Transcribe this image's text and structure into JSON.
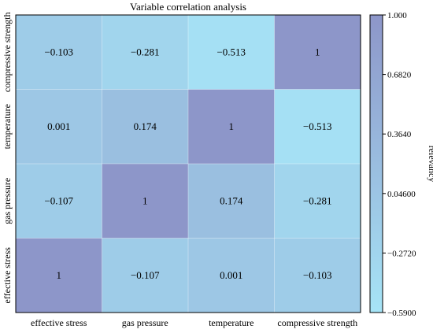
{
  "chart_data": {
    "type": "heatmap",
    "title": "Variable correlation analysis",
    "x_categories": [
      "effective stress",
      "gas pressure",
      "temperature",
      "compressive strength"
    ],
    "y_categories_bottom_to_top": [
      "effective stress",
      "gas pressure",
      "temperature",
      "compressive strength"
    ],
    "matrix_rows_top_to_bottom": [
      [
        -0.103,
        -0.281,
        -0.513,
        1
      ],
      [
        0.001,
        0.174,
        1,
        -0.513
      ],
      [
        -0.107,
        1,
        0.174,
        -0.281
      ],
      [
        1,
        -0.107,
        0.001,
        -0.103
      ]
    ],
    "cell_labels_top_to_bottom": [
      [
        "−0.103",
        "−0.281",
        "−0.513",
        "1"
      ],
      [
        "0.001",
        "0.174",
        "1",
        "−0.513"
      ],
      [
        "−0.107",
        "1",
        "0.174",
        "−0.281"
      ],
      [
        "1",
        "−0.107",
        "0.001",
        "−0.103"
      ]
    ],
    "colorbar": {
      "label": "relevancy",
      "range": [
        -0.59,
        1.0
      ],
      "ticks": [
        1.0,
        0.682,
        0.364,
        0.046,
        -0.272,
        -0.59
      ],
      "tick_labels": [
        "1.000",
        "0.6820",
        "0.3640",
        "0.04600",
        "−0.2720",
        "−0.5900"
      ],
      "color_low": "#a6e4f6",
      "color_high": "#8d96c9"
    }
  }
}
